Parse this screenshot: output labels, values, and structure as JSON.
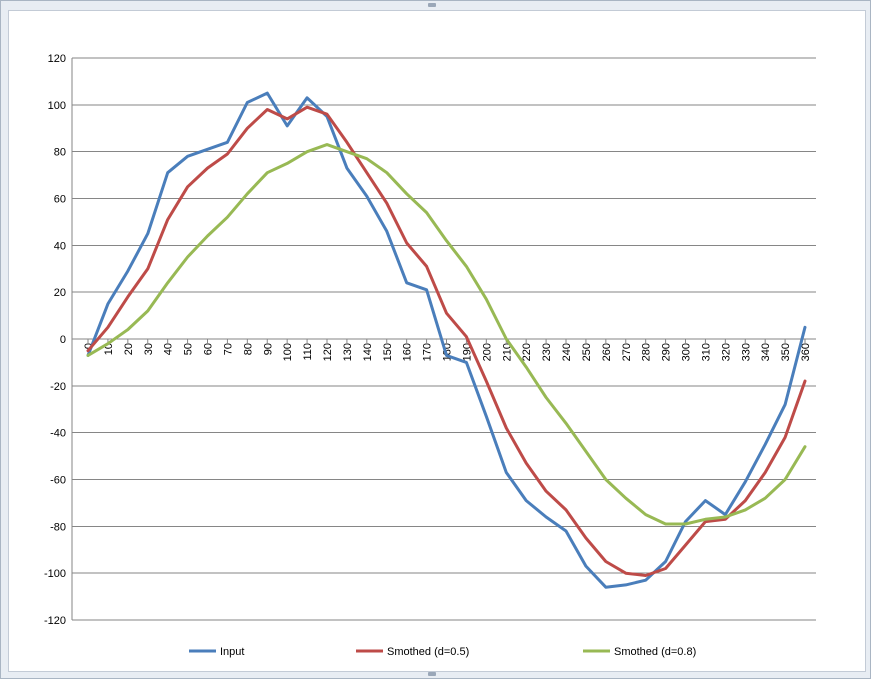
{
  "chart_data": {
    "type": "line",
    "title": "",
    "xlabel": "",
    "ylabel": "",
    "ylim": [
      -120,
      120
    ],
    "yticks": [
      120,
      100,
      80,
      60,
      40,
      20,
      0,
      -20,
      -40,
      -60,
      -80,
      -100,
      -120
    ],
    "grid": true,
    "legend_position": "bottom",
    "categories": [
      "0",
      "10",
      "20",
      "30",
      "40",
      "50",
      "60",
      "70",
      "80",
      "90",
      "100",
      "110",
      "120",
      "130",
      "140",
      "150",
      "160",
      "170",
      "180",
      "190",
      "200",
      "210",
      "220",
      "230",
      "240",
      "250",
      "260",
      "270",
      "280",
      "290",
      "300",
      "310",
      "320",
      "330",
      "340",
      "350",
      "360"
    ],
    "series": [
      {
        "name": "Input",
        "color": "#4a7ebb",
        "values": [
          -7,
          15,
          29,
          45,
          71,
          78,
          81,
          84,
          101,
          105,
          91,
          103,
          95,
          73,
          61,
          46,
          24,
          21,
          -7,
          -10,
          -33,
          -57,
          -69,
          -76,
          -82,
          -97,
          -106,
          -105,
          -103,
          -95,
          -78,
          -69,
          -75,
          -61,
          -45,
          -28,
          5
        ]
      },
      {
        "name": "Smothed (d=0.5)",
        "color": "#be4b48",
        "values": [
          -5,
          5,
          18,
          30,
          51,
          65,
          73,
          79,
          90,
          98,
          94,
          99,
          96,
          84,
          71,
          58,
          41,
          31,
          11,
          1,
          -18,
          -38,
          -53,
          -65,
          -73,
          -85,
          -95,
          -100,
          -101,
          -98,
          -88,
          -78,
          -77,
          -69,
          -57,
          -42,
          -18
        ]
      },
      {
        "name": "Smothed (d=0.8)",
        "color": "#98b954",
        "values": [
          -7,
          -2,
          4,
          12,
          24,
          35,
          44,
          52,
          62,
          71,
          75,
          80,
          83,
          80,
          77,
          71,
          62,
          54,
          42,
          31,
          17,
          0,
          -12,
          -25,
          -36,
          -48,
          -60,
          -68,
          -75,
          -79,
          -79,
          -77,
          -76,
          -73,
          -68,
          -60,
          -46
        ]
      }
    ]
  }
}
